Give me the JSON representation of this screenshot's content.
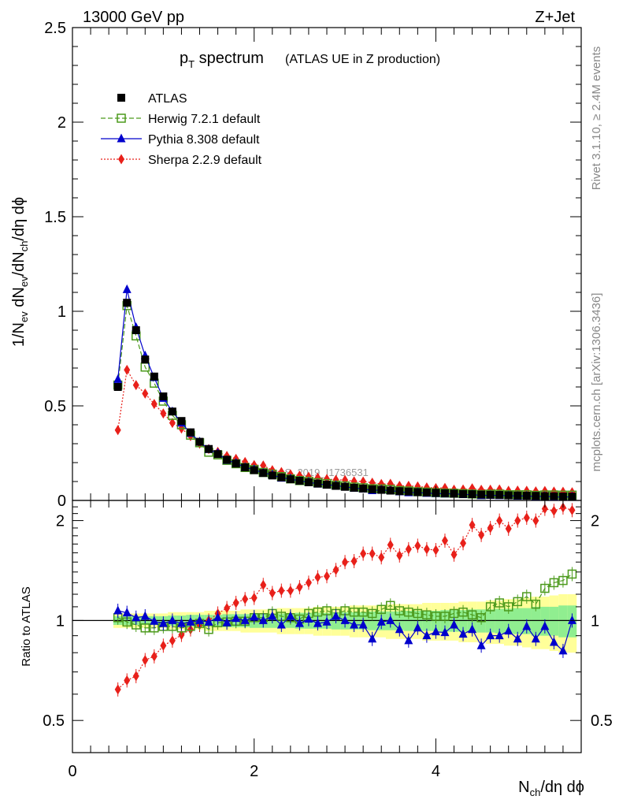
{
  "header": {
    "energy_label": "13000 GeV pp",
    "process_label": "Z+Jet"
  },
  "side_labels": {
    "rivet": "Rivet 3.1.10, ≥ 2.4M events",
    "mcplots": "mcplots.cern.ch [arXiv:1306.3436]"
  },
  "plot_title": {
    "main": "p",
    "main_sub": "T",
    "main_rest": " spectrum",
    "paren": "(ATLAS UE in Z production)"
  },
  "watermark": "ATLAS_2019_I1736531",
  "axes": {
    "ylabel_top": "1/N_ev dN_ev/dN_ch/dη dφ",
    "ylabel_bottom": "Ratio to ATLAS",
    "xlabel": "N_ch/dη dφ"
  },
  "colors": {
    "data": "#000000",
    "herwig": "#4c9a1c",
    "pythia": "#0000cc",
    "sherpa": "#e8201a",
    "band_inner": "#90ee90",
    "band_outer": "#ffff99"
  },
  "chart_data": [
    {
      "type": "line",
      "panel": "main",
      "xlim": [
        0,
        5.6
      ],
      "ylim": [
        0,
        2.5
      ],
      "x_ticks": [
        0,
        2,
        4
      ],
      "y_ticks": [
        0,
        0.5,
        1,
        1.5,
        2,
        2.5
      ],
      "y_tick_labels": [
        "0",
        "0.5",
        "1",
        "1.5",
        "2",
        "2.5"
      ],
      "legend_position": "top-left",
      "x": [
        0.5,
        0.6,
        0.7,
        0.8,
        0.9,
        1.0,
        1.1,
        1.2,
        1.3,
        1.4,
        1.5,
        1.6,
        1.7,
        1.8,
        1.9,
        2.0,
        2.1,
        2.2,
        2.3,
        2.4,
        2.5,
        2.6,
        2.7,
        2.8,
        2.9,
        3.0,
        3.1,
        3.2,
        3.3,
        3.4,
        3.5,
        3.6,
        3.7,
        3.8,
        3.9,
        4.0,
        4.1,
        4.2,
        4.3,
        4.4,
        4.5,
        4.6,
        4.7,
        4.8,
        4.9,
        5.0,
        5.1,
        5.2,
        5.3,
        5.4,
        5.5
      ],
      "series": [
        {
          "name": "ATLAS",
          "values": [
            0.6,
            1.045,
            0.9,
            0.745,
            0.655,
            0.55,
            0.47,
            0.42,
            0.36,
            0.31,
            0.272,
            0.245,
            0.215,
            0.195,
            0.175,
            0.16,
            0.145,
            0.132,
            0.122,
            0.112,
            0.104,
            0.096,
            0.089,
            0.083,
            0.077,
            0.072,
            0.067,
            0.063,
            0.059,
            0.056,
            0.052,
            0.049,
            0.047,
            0.044,
            0.042,
            0.04,
            0.038,
            0.036,
            0.034,
            0.033,
            0.031,
            0.03,
            0.029,
            0.027,
            0.026,
            0.025,
            0.024,
            0.023,
            0.022,
            0.021,
            0.02
          ]
        },
        {
          "name": "Herwig 7.2.1 default",
          "values": [
            0.61,
            1.03,
            0.87,
            0.705,
            0.62,
            0.525,
            0.45,
            0.4,
            0.345,
            0.305,
            0.255,
            0.241,
            0.212,
            0.194,
            0.174,
            0.163,
            0.148,
            0.139,
            0.126,
            0.114,
            0.105,
            0.101,
            0.094,
            0.089,
            0.081,
            0.077,
            0.071,
            0.067,
            0.062,
            0.061,
            0.058,
            0.052,
            0.05,
            0.046,
            0.044,
            0.041,
            0.039,
            0.038,
            0.036,
            0.034,
            0.031,
            0.033,
            0.033,
            0.03,
            0.03,
            0.03,
            0.027,
            0.029,
            0.029,
            0.028,
            0.028
          ]
        },
        {
          "name": "Pythia 8.308 default",
          "values": [
            0.64,
            1.115,
            0.915,
            0.765,
            0.65,
            0.54,
            0.47,
            0.41,
            0.355,
            0.31,
            0.27,
            0.25,
            0.212,
            0.198,
            0.175,
            0.164,
            0.145,
            0.136,
            0.118,
            0.115,
            0.102,
            0.097,
            0.087,
            0.082,
            0.079,
            0.072,
            0.065,
            0.061,
            0.052,
            0.056,
            0.052,
            0.046,
            0.041,
            0.042,
            0.038,
            0.037,
            0.035,
            0.035,
            0.031,
            0.031,
            0.026,
            0.027,
            0.026,
            0.025,
            0.023,
            0.024,
            0.021,
            0.022,
            0.019,
            0.017,
            0.02
          ]
        },
        {
          "name": "Sherpa 2.2.9 default",
          "values": [
            0.372,
            0.69,
            0.61,
            0.565,
            0.51,
            0.46,
            0.41,
            0.38,
            0.34,
            0.3,
            0.272,
            0.257,
            0.235,
            0.22,
            0.203,
            0.187,
            0.185,
            0.16,
            0.15,
            0.138,
            0.131,
            0.125,
            0.12,
            0.113,
            0.109,
            0.108,
            0.101,
            0.1,
            0.094,
            0.087,
            0.088,
            0.077,
            0.077,
            0.074,
            0.069,
            0.065,
            0.066,
            0.057,
            0.058,
            0.064,
            0.056,
            0.057,
            0.058,
            0.051,
            0.052,
            0.051,
            0.048,
            0.05,
            0.047,
            0.046,
            0.043
          ]
        }
      ]
    },
    {
      "type": "line",
      "panel": "ratio",
      "xlim": [
        0,
        5.6
      ],
      "ylim": [
        0.4,
        2.3
      ],
      "y_scale": "log",
      "x_ticks": [
        0,
        2,
        4
      ],
      "x_tick_labels": [
        "0",
        "2",
        "4"
      ],
      "y_ticks": [
        0.5,
        1,
        2
      ],
      "y_tick_labels": [
        "0.5",
        "1",
        "2"
      ],
      "x": [
        0.5,
        0.6,
        0.7,
        0.8,
        0.9,
        1.0,
        1.1,
        1.2,
        1.3,
        1.4,
        1.5,
        1.6,
        1.7,
        1.8,
        1.9,
        2.0,
        2.1,
        2.2,
        2.3,
        2.4,
        2.5,
        2.6,
        2.7,
        2.8,
        2.9,
        3.0,
        3.1,
        3.2,
        3.3,
        3.4,
        3.5,
        3.6,
        3.7,
        3.8,
        3.9,
        4.0,
        4.1,
        4.2,
        4.3,
        4.4,
        4.5,
        4.6,
        4.7,
        4.8,
        4.9,
        5.0,
        5.1,
        5.2,
        5.3,
        5.4,
        5.5
      ],
      "band_inner_halfwidth": [
        0.03,
        0.03,
        0.03,
        0.03,
        0.03,
        0.03,
        0.035,
        0.035,
        0.04,
        0.04,
        0.04,
        0.04,
        0.045,
        0.045,
        0.045,
        0.05,
        0.05,
        0.05,
        0.05,
        0.05,
        0.055,
        0.055,
        0.055,
        0.055,
        0.06,
        0.06,
        0.06,
        0.06,
        0.065,
        0.065,
        0.065,
        0.065,
        0.07,
        0.07,
        0.07,
        0.07,
        0.075,
        0.075,
        0.075,
        0.08,
        0.08,
        0.08,
        0.085,
        0.085,
        0.09,
        0.09,
        0.1,
        0.1,
        0.1,
        0.11,
        0.11
      ],
      "band_outer_halfwidth": [
        0.05,
        0.05,
        0.05,
        0.05,
        0.05,
        0.05,
        0.06,
        0.06,
        0.06,
        0.06,
        0.07,
        0.07,
        0.07,
        0.07,
        0.08,
        0.08,
        0.08,
        0.08,
        0.09,
        0.09,
        0.09,
        0.09,
        0.1,
        0.1,
        0.1,
        0.1,
        0.11,
        0.11,
        0.11,
        0.11,
        0.12,
        0.12,
        0.12,
        0.12,
        0.13,
        0.13,
        0.13,
        0.13,
        0.14,
        0.14,
        0.14,
        0.15,
        0.15,
        0.16,
        0.16,
        0.17,
        0.18,
        0.18,
        0.19,
        0.2,
        0.2
      ],
      "series": [
        {
          "name": "Herwig 7.2.1 default",
          "values": [
            1.02,
            0.99,
            0.97,
            0.95,
            0.95,
            0.96,
            0.96,
            0.95,
            0.96,
            0.98,
            0.94,
            0.985,
            0.99,
            0.995,
            0.995,
            1.02,
            1.02,
            1.05,
            1.03,
            1.02,
            1.01,
            1.05,
            1.06,
            1.07,
            1.05,
            1.07,
            1.06,
            1.06,
            1.05,
            1.08,
            1.11,
            1.07,
            1.06,
            1.05,
            1.04,
            1.03,
            1.03,
            1.05,
            1.06,
            1.04,
            1.02,
            1.1,
            1.13,
            1.1,
            1.14,
            1.18,
            1.12,
            1.25,
            1.3,
            1.32,
            1.38
          ]
        },
        {
          "name": "Pythia 8.308 default",
          "values": [
            1.07,
            1.055,
            1.02,
            1.03,
            0.995,
            0.98,
            1.0,
            0.98,
            0.99,
            1.0,
            0.99,
            1.02,
            0.985,
            1.015,
            1.0,
            1.025,
            1.0,
            1.03,
            0.97,
            1.03,
            0.98,
            1.01,
            0.98,
            0.99,
            1.03,
            1.0,
            0.97,
            0.97,
            0.88,
            0.99,
            1.0,
            0.94,
            0.87,
            0.95,
            0.9,
            0.925,
            0.92,
            0.97,
            0.91,
            0.94,
            0.84,
            0.9,
            0.9,
            0.93,
            0.88,
            0.96,
            0.88,
            0.96,
            0.86,
            0.81,
            1.0
          ]
        },
        {
          "name": "Sherpa 2.2.9 default",
          "values": [
            0.62,
            0.66,
            0.68,
            0.76,
            0.78,
            0.84,
            0.87,
            0.905,
            0.94,
            0.97,
            1.0,
            1.05,
            1.09,
            1.13,
            1.16,
            1.17,
            1.28,
            1.21,
            1.23,
            1.23,
            1.26,
            1.3,
            1.35,
            1.36,
            1.42,
            1.5,
            1.51,
            1.59,
            1.59,
            1.55,
            1.69,
            1.57,
            1.64,
            1.68,
            1.64,
            1.63,
            1.74,
            1.58,
            1.71,
            1.94,
            1.81,
            1.9,
            2.0,
            1.89,
            2.0,
            2.04,
            2.0,
            2.17,
            2.14,
            2.19,
            2.15
          ]
        }
      ]
    }
  ]
}
